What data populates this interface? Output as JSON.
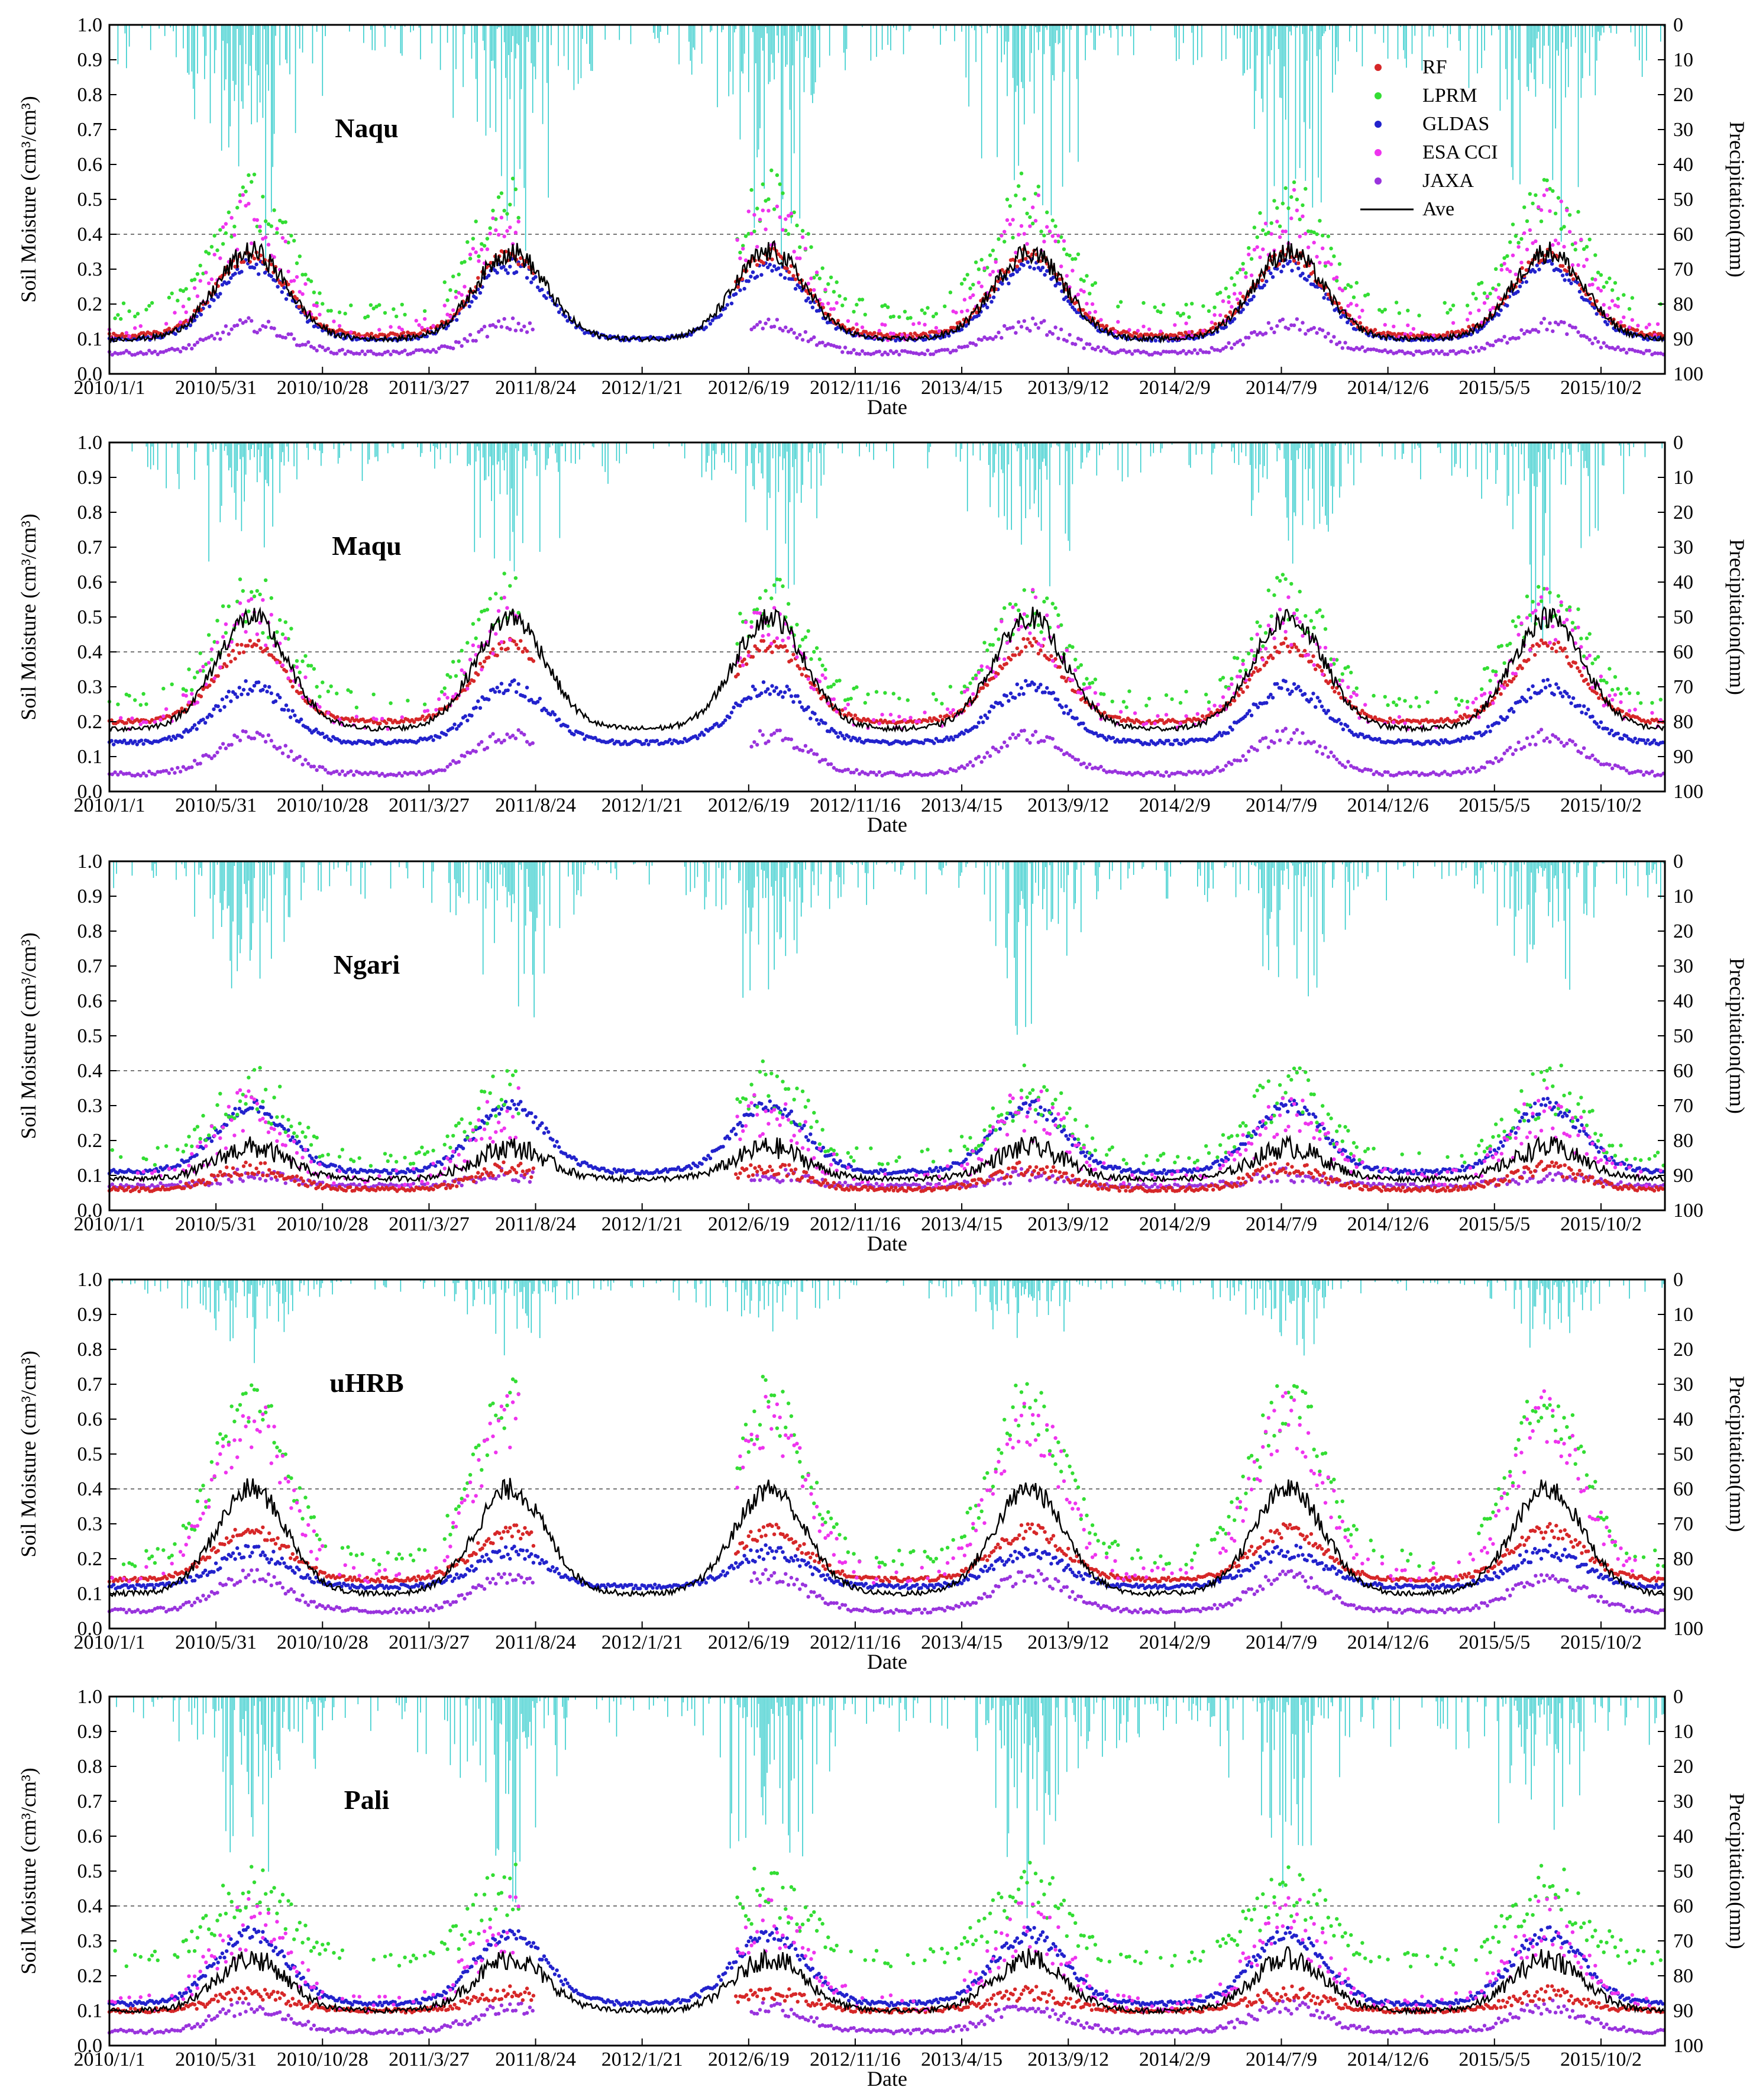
{
  "chart_data": {
    "type": "line+scatter",
    "x_ticks": [
      "2010/1/1",
      "2010/5/31",
      "2010/10/28",
      "2011/3/27",
      "2011/8/24",
      "2012/1/21",
      "2012/6/19",
      "2012/11/16",
      "2013/4/15",
      "2013/9/12",
      "2014/2/9",
      "2014/7/9",
      "2014/12/6",
      "2015/5/5",
      "2015/10/2"
    ],
    "y_ticks": [
      "0.0",
      "0.1",
      "0.2",
      "0.3",
      "0.4",
      "0.5",
      "0.6",
      "0.7",
      "0.8",
      "0.9",
      "1.0"
    ],
    "y2_ticks": [
      "0",
      "10",
      "20",
      "30",
      "40",
      "50",
      "60",
      "70",
      "80",
      "90",
      "100"
    ],
    "xlabel": "Date",
    "ylabel": "Soil Moisture (cm³/cm³)",
    "y2label": "Precipitation(mm)",
    "ylim": [
      0,
      1
    ],
    "y2lim": [
      0,
      100
    ],
    "reference_line": 0.4,
    "legend": [
      {
        "name": "RF",
        "color": "#d62728",
        "style": "dot"
      },
      {
        "name": "LPRM",
        "color": "#33dd33",
        "style": "dot"
      },
      {
        "name": "GLDAS",
        "color": "#2222cc",
        "style": "dot"
      },
      {
        "name": "ESA CCI",
        "color": "#ee33ee",
        "style": "dot"
      },
      {
        "name": "JAXA",
        "color": "#9933dd",
        "style": "dot"
      },
      {
        "name": "Ave",
        "color": "#000000",
        "style": "line"
      }
    ],
    "precip_color": "#33cccc",
    "panels": [
      {
        "name": "Naqu",
        "base": {
          "RF": 0.11,
          "LPRM": 0.18,
          "GLDAS": 0.1,
          "ESA CCI": 0.12,
          "JAXA": 0.06,
          "Ave": 0.1
        },
        "peak": {
          "RF": 0.34,
          "LPRM": 0.5,
          "GLDAS": 0.31,
          "ESA CCI": 0.45,
          "JAXA": 0.14,
          "Ave": 0.35
        },
        "precip_max": 60
      },
      {
        "name": "Maqu",
        "base": {
          "RF": 0.2,
          "LPRM": 0.26,
          "GLDAS": 0.14,
          "ESA CCI": 0.2,
          "JAXA": 0.05,
          "Ave": 0.18
        },
        "peak": {
          "RF": 0.42,
          "LPRM": 0.55,
          "GLDAS": 0.3,
          "ESA CCI": 0.5,
          "JAXA": 0.16,
          "Ave": 0.5
        },
        "precip_max": 45
      },
      {
        "name": "Ngari",
        "base": {
          "RF": 0.06,
          "LPRM": 0.15,
          "GLDAS": 0.11,
          "ESA CCI": 0.09,
          "JAXA": 0.07,
          "Ave": 0.09
        },
        "peak": {
          "RF": 0.12,
          "LPRM": 0.35,
          "GLDAS": 0.3,
          "ESA CCI": 0.28,
          "JAXA": 0.1,
          "Ave": 0.18
        },
        "precip_max": 45
      },
      {
        "name": "uHRB",
        "base": {
          "RF": 0.14,
          "LPRM": 0.2,
          "GLDAS": 0.12,
          "ESA CCI": 0.15,
          "JAXA": 0.05,
          "Ave": 0.1
        },
        "peak": {
          "RF": 0.28,
          "LPRM": 0.65,
          "GLDAS": 0.22,
          "ESA CCI": 0.6,
          "JAXA": 0.15,
          "Ave": 0.4
        },
        "precip_max": 20
      },
      {
        "name": "Pali",
        "base": {
          "RF": 0.1,
          "LPRM": 0.25,
          "GLDAS": 0.12,
          "ESA CCI": 0.12,
          "JAXA": 0.04,
          "Ave": 0.1
        },
        "peak": {
          "RF": 0.15,
          "LPRM": 0.45,
          "GLDAS": 0.32,
          "ESA CCI": 0.35,
          "JAXA": 0.11,
          "Ave": 0.25
        },
        "precip_max": 55
      }
    ]
  }
}
